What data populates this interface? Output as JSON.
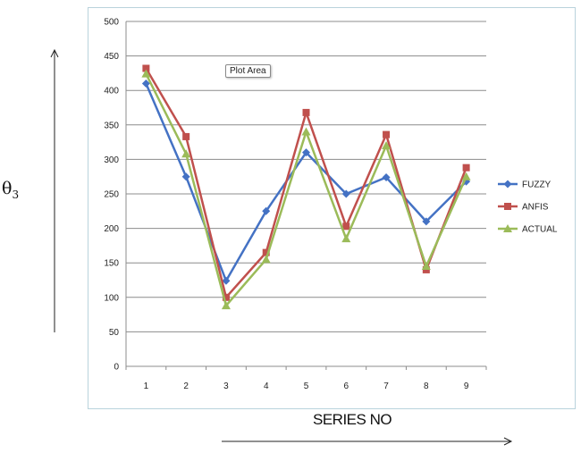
{
  "chart_data": {
    "type": "line",
    "title": "",
    "xlabel": "SERIES NO",
    "ylabel_symbol": "θ",
    "ylabel_subscript": "3",
    "categories": [
      "1",
      "2",
      "3",
      "4",
      "5",
      "6",
      "7",
      "8",
      "9"
    ],
    "ylim": [
      0,
      500
    ],
    "yticks": [
      "0",
      "50",
      "100",
      "150",
      "200",
      "250",
      "300",
      "350",
      "400",
      "450",
      "500"
    ],
    "grid": true,
    "legend_position": "right",
    "series": [
      {
        "name": "FUZZY",
        "color": "#4472c4",
        "marker": "diamond",
        "values": [
          410,
          275,
          124,
          225,
          310,
          250,
          274,
          210,
          268
        ]
      },
      {
        "name": "ANFIS",
        "color": "#c0504d",
        "marker": "square",
        "values": [
          432,
          333,
          100,
          165,
          368,
          203,
          336,
          140,
          288
        ]
      },
      {
        "name": "ACTUAL",
        "color": "#9bbb59",
        "marker": "triangle",
        "values": [
          424,
          308,
          88,
          155,
          340,
          185,
          320,
          145,
          275
        ]
      }
    ],
    "annotation": "Plot Area"
  }
}
